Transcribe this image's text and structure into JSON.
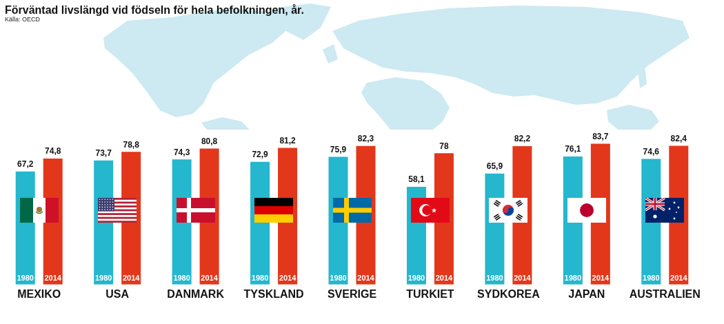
{
  "chart_data": {
    "type": "bar",
    "title": "Förväntad livslängd vid födseln för hela befolkningen, år.",
    "annotations": [
      "Källa: OECD"
    ],
    "categories": [
      "MEXIKO",
      "USA",
      "DANMARK",
      "TYSKLAND",
      "SVERIGE",
      "TURKIET",
      "SYDKOREA",
      "JAPAN",
      "AUSTRALIEN"
    ],
    "series": [
      {
        "name": "1980",
        "color": "#24b7ce",
        "values": [
          67.2,
          73.7,
          74.3,
          72.9,
          75.9,
          58.1,
          65.9,
          76.1,
          74.6
        ],
        "value_labels": [
          "67,2",
          "73,7",
          "74,3",
          "72,9",
          "75,9",
          "58,1",
          "65,9",
          "76,1",
          "74,6"
        ]
      },
      {
        "name": "2014",
        "color": "#e3371b",
        "values": [
          74.8,
          78.8,
          80.8,
          81.2,
          82.3,
          78,
          82.2,
          83.7,
          82.4
        ],
        "value_labels": [
          "74,8",
          "78,8",
          "80,8",
          "81,2",
          "82,3",
          "78",
          "82,2",
          "83,7",
          "82,4"
        ]
      }
    ],
    "tick_labels": "x"
  }
}
